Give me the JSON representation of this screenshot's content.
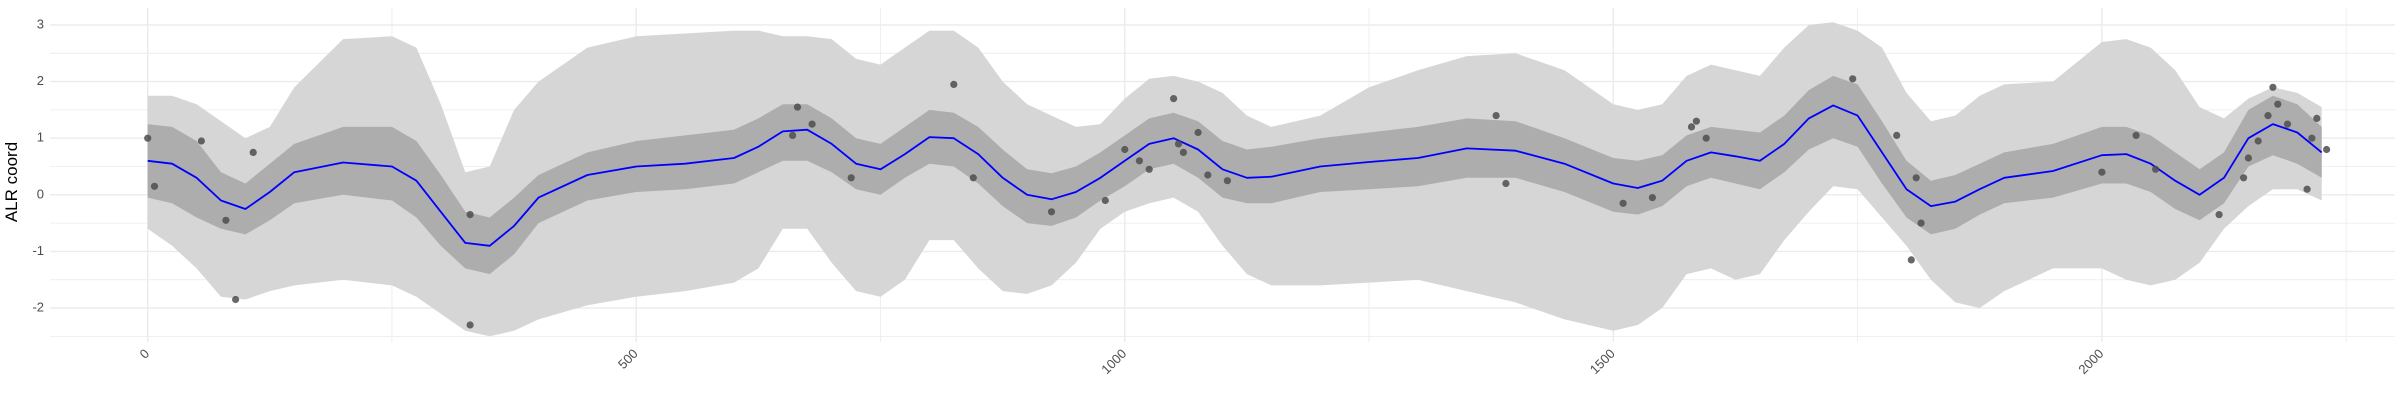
{
  "chart_data": {
    "type": "line",
    "ylabel": "ALR coord",
    "xlabel": "",
    "xlim": [
      -100,
      2300
    ],
    "ylim": [
      -2.6,
      3.3
    ],
    "x_ticks": [
      0,
      500,
      1000,
      1500,
      2000
    ],
    "x_tick_labels": [
      "0",
      "500",
      "1000",
      "1500",
      "2000"
    ],
    "y_ticks": [
      -2,
      -1,
      0,
      1,
      2,
      3
    ],
    "y_tick_labels": [
      "-2",
      "-1",
      "0",
      "1",
      "2",
      "3"
    ],
    "grid": true,
    "colors": {
      "line": "#0000ff",
      "inner_band": "#adadad",
      "outer_band": "#d6d6d6",
      "points": "#4d4d4d",
      "grid": "#ebebeb"
    },
    "series": [
      {
        "type": "line",
        "x": [
          0,
          25,
          50,
          75,
          100,
          125,
          150,
          200,
          250,
          275,
          300,
          325,
          350,
          375,
          400,
          450,
          500,
          550,
          600,
          625,
          650,
          675,
          700,
          725,
          750,
          775,
          800,
          825,
          850,
          875,
          900,
          925,
          950,
          975,
          1000,
          1025,
          1050,
          1075,
          1100,
          1125,
          1150,
          1200,
          1250,
          1300,
          1350,
          1400,
          1450,
          1500,
          1525,
          1550,
          1575,
          1600,
          1625,
          1650,
          1675,
          1700,
          1725,
          1750,
          1775,
          1800,
          1825,
          1850,
          1875,
          1900,
          1950,
          2000,
          2025,
          2050,
          2075,
          2100,
          2125,
          2150,
          2175,
          2200,
          2225
        ],
        "y": [
          0.6,
          0.55,
          0.3,
          -0.1,
          -0.25,
          0.05,
          0.4,
          0.57,
          0.5,
          0.25,
          -0.3,
          -0.85,
          -0.9,
          -0.55,
          -0.05,
          0.35,
          0.5,
          0.55,
          0.65,
          0.85,
          1.12,
          1.15,
          0.9,
          0.55,
          0.45,
          0.72,
          1.02,
          1.0,
          0.72,
          0.3,
          0.0,
          -0.08,
          0.05,
          0.3,
          0.6,
          0.9,
          1.0,
          0.8,
          0.45,
          0.3,
          0.32,
          0.5,
          0.58,
          0.65,
          0.82,
          0.78,
          0.55,
          0.2,
          0.12,
          0.25,
          0.6,
          0.75,
          0.68,
          0.6,
          0.9,
          1.35,
          1.58,
          1.4,
          0.75,
          0.1,
          -0.2,
          -0.12,
          0.1,
          0.3,
          0.42,
          0.7,
          0.72,
          0.55,
          0.25,
          0.0,
          0.3,
          1.0,
          1.25,
          1.1,
          0.75
        ],
        "inner_lower": [
          -0.05,
          -0.15,
          -0.4,
          -0.6,
          -0.7,
          -0.45,
          -0.15,
          0.0,
          -0.1,
          -0.4,
          -0.9,
          -1.3,
          -1.4,
          -1.05,
          -0.5,
          -0.1,
          0.05,
          0.1,
          0.2,
          0.4,
          0.6,
          0.6,
          0.4,
          0.1,
          0.0,
          0.3,
          0.55,
          0.5,
          0.2,
          -0.2,
          -0.5,
          -0.55,
          -0.4,
          -0.1,
          0.15,
          0.45,
          0.55,
          0.3,
          -0.05,
          -0.15,
          -0.15,
          0.05,
          0.1,
          0.15,
          0.3,
          0.3,
          0.05,
          -0.3,
          -0.35,
          -0.2,
          0.15,
          0.3,
          0.2,
          0.1,
          0.4,
          0.8,
          1.0,
          0.85,
          0.2,
          -0.4,
          -0.7,
          -0.6,
          -0.35,
          -0.15,
          -0.05,
          0.2,
          0.2,
          0.05,
          -0.25,
          -0.45,
          -0.15,
          0.5,
          0.7,
          0.55,
          0.3
        ],
        "inner_upper": [
          1.25,
          1.2,
          0.95,
          0.4,
          0.2,
          0.55,
          0.9,
          1.2,
          1.2,
          0.95,
          0.35,
          -0.3,
          -0.4,
          -0.05,
          0.35,
          0.75,
          0.95,
          1.05,
          1.15,
          1.35,
          1.6,
          1.6,
          1.35,
          1.0,
          0.9,
          1.2,
          1.5,
          1.45,
          1.2,
          0.8,
          0.45,
          0.38,
          0.5,
          0.75,
          1.05,
          1.35,
          1.45,
          1.3,
          0.95,
          0.8,
          0.85,
          1.0,
          1.1,
          1.2,
          1.35,
          1.3,
          1.0,
          0.65,
          0.6,
          0.7,
          1.05,
          1.2,
          1.15,
          1.1,
          1.4,
          1.85,
          2.1,
          1.95,
          1.3,
          0.6,
          0.25,
          0.35,
          0.55,
          0.75,
          0.9,
          1.2,
          1.2,
          1.05,
          0.75,
          0.45,
          0.75,
          1.5,
          1.75,
          1.6,
          1.2
        ],
        "outer_lower": [
          -0.6,
          -0.9,
          -1.3,
          -1.8,
          -1.85,
          -1.7,
          -1.6,
          -1.5,
          -1.6,
          -1.8,
          -2.1,
          -2.4,
          -2.5,
          -2.4,
          -2.2,
          -1.95,
          -1.8,
          -1.7,
          -1.55,
          -1.3,
          -0.6,
          -0.6,
          -1.2,
          -1.7,
          -1.8,
          -1.5,
          -0.8,
          -0.8,
          -1.3,
          -1.7,
          -1.75,
          -1.6,
          -1.2,
          -0.6,
          -0.3,
          -0.15,
          -0.05,
          -0.3,
          -0.9,
          -1.4,
          -1.6,
          -1.6,
          -1.55,
          -1.5,
          -1.7,
          -1.9,
          -2.2,
          -2.4,
          -2.3,
          -2.0,
          -1.4,
          -1.3,
          -1.5,
          -1.4,
          -0.8,
          -0.3,
          0.15,
          0.1,
          -0.4,
          -0.9,
          -1.5,
          -1.9,
          -2.0,
          -1.7,
          -1.3,
          -1.3,
          -1.5,
          -1.6,
          -1.5,
          -1.2,
          -0.6,
          -0.2,
          0.1,
          0.1,
          -0.1
        ],
        "outer_upper": [
          1.75,
          1.75,
          1.6,
          1.3,
          1.0,
          1.2,
          1.9,
          2.75,
          2.8,
          2.6,
          1.6,
          0.4,
          0.5,
          1.5,
          2.0,
          2.6,
          2.8,
          2.85,
          2.9,
          2.9,
          2.8,
          2.8,
          2.75,
          2.4,
          2.3,
          2.6,
          2.9,
          2.9,
          2.6,
          2.0,
          1.6,
          1.4,
          1.2,
          1.25,
          1.7,
          2.05,
          2.1,
          2.0,
          1.8,
          1.4,
          1.2,
          1.4,
          1.9,
          2.2,
          2.45,
          2.5,
          2.2,
          1.6,
          1.5,
          1.6,
          2.1,
          2.3,
          2.2,
          2.1,
          2.6,
          3.0,
          3.05,
          2.9,
          2.6,
          1.8,
          1.3,
          1.4,
          1.75,
          1.95,
          2.0,
          2.7,
          2.75,
          2.6,
          2.2,
          1.55,
          1.35,
          1.7,
          1.9,
          1.8,
          1.55
        ]
      },
      {
        "type": "scatter",
        "x": [
          0,
          7,
          55,
          80,
          90,
          108,
          330,
          330,
          660,
          665,
          680,
          720,
          825,
          845,
          925,
          980,
          1000,
          1015,
          1025,
          1050,
          1055,
          1060,
          1075,
          1085,
          1105,
          1380,
          1390,
          1510,
          1540,
          1580,
          1585,
          1595,
          1745,
          1790,
          1805,
          1810,
          1815,
          2000,
          2035,
          2055,
          2120,
          2145,
          2150,
          2160,
          2170,
          2175,
          2180,
          2190,
          2210,
          2215,
          2220,
          2230
        ],
        "y": [
          1.0,
          0.15,
          0.95,
          -0.45,
          -1.85,
          0.75,
          -0.35,
          -2.3,
          1.05,
          1.55,
          1.25,
          0.3,
          1.95,
          0.3,
          -0.3,
          -0.1,
          0.8,
          0.6,
          0.45,
          1.7,
          0.9,
          0.75,
          1.1,
          0.35,
          0.25,
          1.4,
          0.2,
          -0.15,
          -0.05,
          1.2,
          1.3,
          1.0,
          2.05,
          1.05,
          -1.15,
          0.3,
          -0.5,
          0.4,
          1.05,
          0.45,
          -0.35,
          0.3,
          0.65,
          0.95,
          1.4,
          1.9,
          1.6,
          1.25,
          0.1,
          1.0,
          1.35,
          0.8
        ]
      }
    ]
  }
}
